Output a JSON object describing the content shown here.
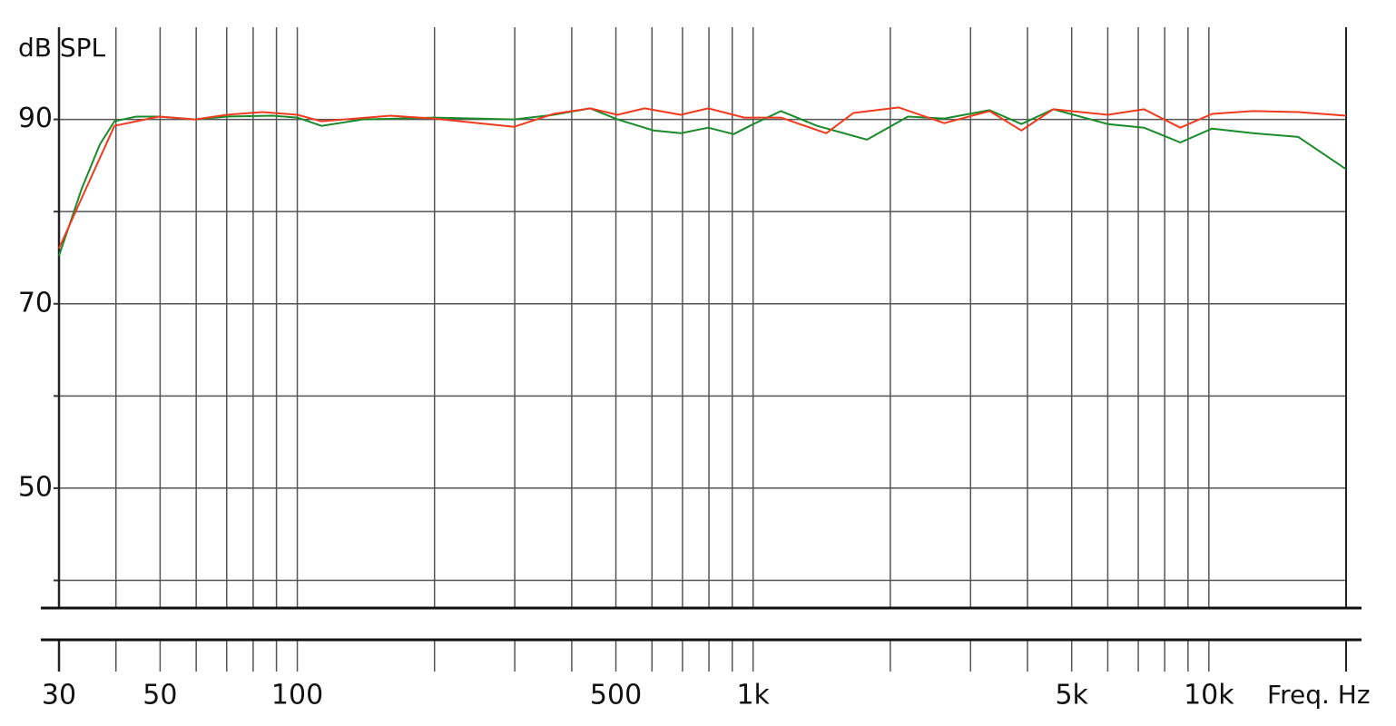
{
  "chart_data": {
    "type": "line",
    "y_label": "dB SPL",
    "x_label": "Freq. Hz",
    "log_x": true,
    "xlim": [
      30,
      20000
    ],
    "ylim": [
      37,
      100
    ],
    "xticks": [
      30,
      50,
      100,
      500,
      {
        "value": 1000,
        "label": "1k"
      },
      {
        "value": 5000,
        "label": "5k"
      },
      {
        "value": 10000,
        "label": "10k"
      }
    ],
    "xgrid": [
      40,
      50,
      60,
      70,
      80,
      90,
      100,
      200,
      300,
      400,
      500,
      600,
      700,
      800,
      900,
      1000,
      2000,
      3000,
      4000,
      5000,
      6000,
      7000,
      8000,
      9000,
      10000,
      20000
    ],
    "yticks": [
      50,
      70,
      90
    ],
    "ygrid": [
      40,
      50,
      60,
      70,
      80,
      90
    ],
    "series": [
      {
        "name": "green",
        "color": "#1a8a2a",
        "x": [
          30,
          33.6,
          36.9,
          39.7,
          44.3,
          49.7,
          59.7,
          70,
          88,
          100,
          113,
          139,
          199,
          299,
          365,
          439,
          504,
          605,
          694,
          797,
          906,
          1002,
          1151,
          1382,
          1778,
          2186,
          2627,
          3302,
          3879,
          4554,
          5998,
          7207,
          8658,
          10165,
          12495,
          15713,
          20000
        ],
        "values": [
          75.2,
          82.4,
          87.3,
          89.8,
          90.3,
          90.3,
          90,
          90.3,
          90.4,
          90.2,
          89.3,
          90,
          90.2,
          90,
          90.5,
          91.2,
          90,
          88.8,
          88.5,
          89.1,
          88.4,
          89.5,
          90.9,
          89.3,
          87.8,
          90.3,
          90.1,
          91,
          89.5,
          91.1,
          89.5,
          89.1,
          87.5,
          89,
          88.5,
          88.1,
          84.6
        ]
      },
      {
        "name": "red",
        "color": "#f03a1e",
        "x": [
          30,
          33.6,
          39.7,
          49.7,
          59.7,
          70,
          84,
          100,
          113,
          160,
          199,
          299,
          365,
          439,
          504,
          578,
          694,
          797,
          957,
          1151,
          1447,
          1660,
          2088,
          2627,
          3302,
          3879,
          4554,
          5998,
          7207,
          8658,
          10165,
          12495,
          15713,
          20000
        ],
        "values": [
          76,
          81.4,
          89.3,
          90.3,
          90,
          90.5,
          90.8,
          90.5,
          89.8,
          90.4,
          90.1,
          89.2,
          90.6,
          91.2,
          90.5,
          91.2,
          90.5,
          91.2,
          90.2,
          90.2,
          88.5,
          90.7,
          91.3,
          89.6,
          90.9,
          88.8,
          91.1,
          90.5,
          91.1,
          89.1,
          90.6,
          90.9,
          90.8,
          90.4
        ]
      }
    ]
  }
}
